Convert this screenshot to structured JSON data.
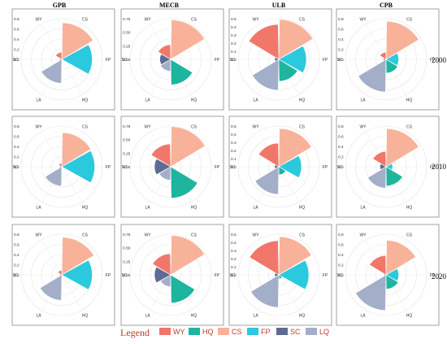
{
  "figure": {
    "columns": [
      "GPB",
      "MECB",
      "ULB",
      "CPB"
    ],
    "rows": [
      "2000",
      "2010",
      "2020"
    ],
    "legend_title": "Legend"
  },
  "colors": {
    "WY": "#F0776A",
    "HQ": "#1EB59E",
    "CS": "#F9B29A",
    "FP": "#2BC9DE",
    "SC": "#5F6B92",
    "LQ": "#A3AEC8"
  },
  "chart_data": {
    "type": "polar-bar",
    "directions": [
      "CS",
      "FP",
      "HQ",
      "LA",
      "SC",
      "WY"
    ],
    "categories": [
      "WY",
      "HQ",
      "CS",
      "FP",
      "SC",
      "LQ"
    ],
    "legend": [
      "WY",
      "HQ",
      "CS",
      "FP",
      "SC",
      "LQ"
    ],
    "grid": true,
    "panels": [
      {
        "column": "GPB",
        "row": "2000",
        "rmax": 0.8,
        "ticks": [
          "0.8",
          "0.6",
          "0.4",
          "0.2",
          "0.0"
        ],
        "values": {
          "WY": 0.14,
          "HQ": 0.02,
          "CS": 0.72,
          "FP": 0.6,
          "SC": 0.04,
          "LQ": 0.47
        }
      },
      {
        "column": "MECB",
        "row": "2000",
        "rmax": 0.75,
        "ticks": [
          "0.75",
          "0.50",
          "0.25",
          "0.00"
        ],
        "values": {
          "WY": 0.27,
          "HQ": 0.47,
          "CS": 0.73,
          "FP": 0.02,
          "SC": 0.2,
          "LQ": 0.22
        }
      },
      {
        "column": "ULB",
        "row": "2000",
        "rmax": 0.5,
        "ticks": [
          "0.5",
          "0.4",
          "0.3",
          "0.2",
          "0.1",
          "0.0"
        ],
        "values": {
          "WY": 0.43,
          "HQ": 0.27,
          "CS": 0.49,
          "FP": 0.34,
          "SC": 0.05,
          "LQ": 0.38
        }
      },
      {
        "column": "CPB",
        "row": "2000",
        "rmax": 0.8,
        "ticks": [
          "0.8",
          "0.6",
          "0.4",
          "0.2",
          "0.0"
        ],
        "values": {
          "WY": 0.14,
          "HQ": 0.27,
          "CS": 0.75,
          "FP": 0.25,
          "SC": 0.05,
          "LQ": 0.64
        }
      },
      {
        "column": "GPB",
        "row": "2010",
        "rmax": 0.8,
        "ticks": [
          "0.8",
          "0.6",
          "0.4",
          "0.2",
          "0.0"
        ],
        "values": {
          "WY": 0.07,
          "HQ": 0.02,
          "CS": 0.67,
          "FP": 0.65,
          "SC": 0.04,
          "LQ": 0.38
        }
      },
      {
        "column": "MECB",
        "row": "2010",
        "rmax": 0.75,
        "ticks": [
          "0.75",
          "0.50",
          "0.25",
          "0.00"
        ],
        "values": {
          "WY": 0.42,
          "HQ": 0.58,
          "CS": 0.74,
          "FP": 0.02,
          "SC": 0.3,
          "LQ": 0.25
        }
      },
      {
        "column": "ULB",
        "row": "2010",
        "rmax": 0.5,
        "ticks": [
          "0.5",
          "0.4",
          "0.3",
          "0.2",
          "0.1",
          "0.0"
        ],
        "values": {
          "WY": 0.29,
          "HQ": 0.1,
          "CS": 0.47,
          "FP": 0.28,
          "SC": 0.05,
          "LQ": 0.34
        }
      },
      {
        "column": "CPB",
        "row": "2010",
        "rmax": 0.8,
        "ticks": [
          "0.8",
          "0.6",
          "0.4",
          "0.2",
          "0.0"
        ],
        "values": {
          "WY": 0.3,
          "HQ": 0.38,
          "CS": 0.75,
          "FP": 0.13,
          "SC": 0.12,
          "LQ": 0.42
        }
      },
      {
        "column": "GPB",
        "row": "2020",
        "rmax": 0.8,
        "ticks": [
          "0.8",
          "0.6",
          "0.4",
          "0.2",
          "0.0"
        ],
        "values": {
          "WY": 0.09,
          "HQ": 0.03,
          "CS": 0.74,
          "FP": 0.6,
          "SC": 0.04,
          "LQ": 0.5
        }
      },
      {
        "column": "MECB",
        "row": "2020",
        "rmax": 0.75,
        "ticks": [
          "0.75",
          "0.50",
          "0.25",
          "0.00"
        ],
        "values": {
          "WY": 0.39,
          "HQ": 0.52,
          "CS": 0.73,
          "FP": 0.02,
          "SC": 0.3,
          "LQ": 0.22
        }
      },
      {
        "column": "ULB",
        "row": "2020",
        "rmax": 0.5,
        "ticks": [
          "0.5",
          "0.4",
          "0.3",
          "0.2",
          "0.1",
          "0.0"
        ],
        "values": {
          "WY": 0.42,
          "HQ": 0.05,
          "CS": 0.47,
          "FP": 0.37,
          "SC": 0.05,
          "LQ": 0.4
        }
      },
      {
        "column": "CPB",
        "row": "2020",
        "rmax": 0.8,
        "ticks": [
          "0.8",
          "0.6",
          "0.4",
          "0.2",
          "0.0"
        ],
        "values": {
          "WY": 0.38,
          "HQ": 0.28,
          "CS": 0.68,
          "FP": 0.25,
          "SC": 0.04,
          "LQ": 0.7
        }
      }
    ]
  }
}
